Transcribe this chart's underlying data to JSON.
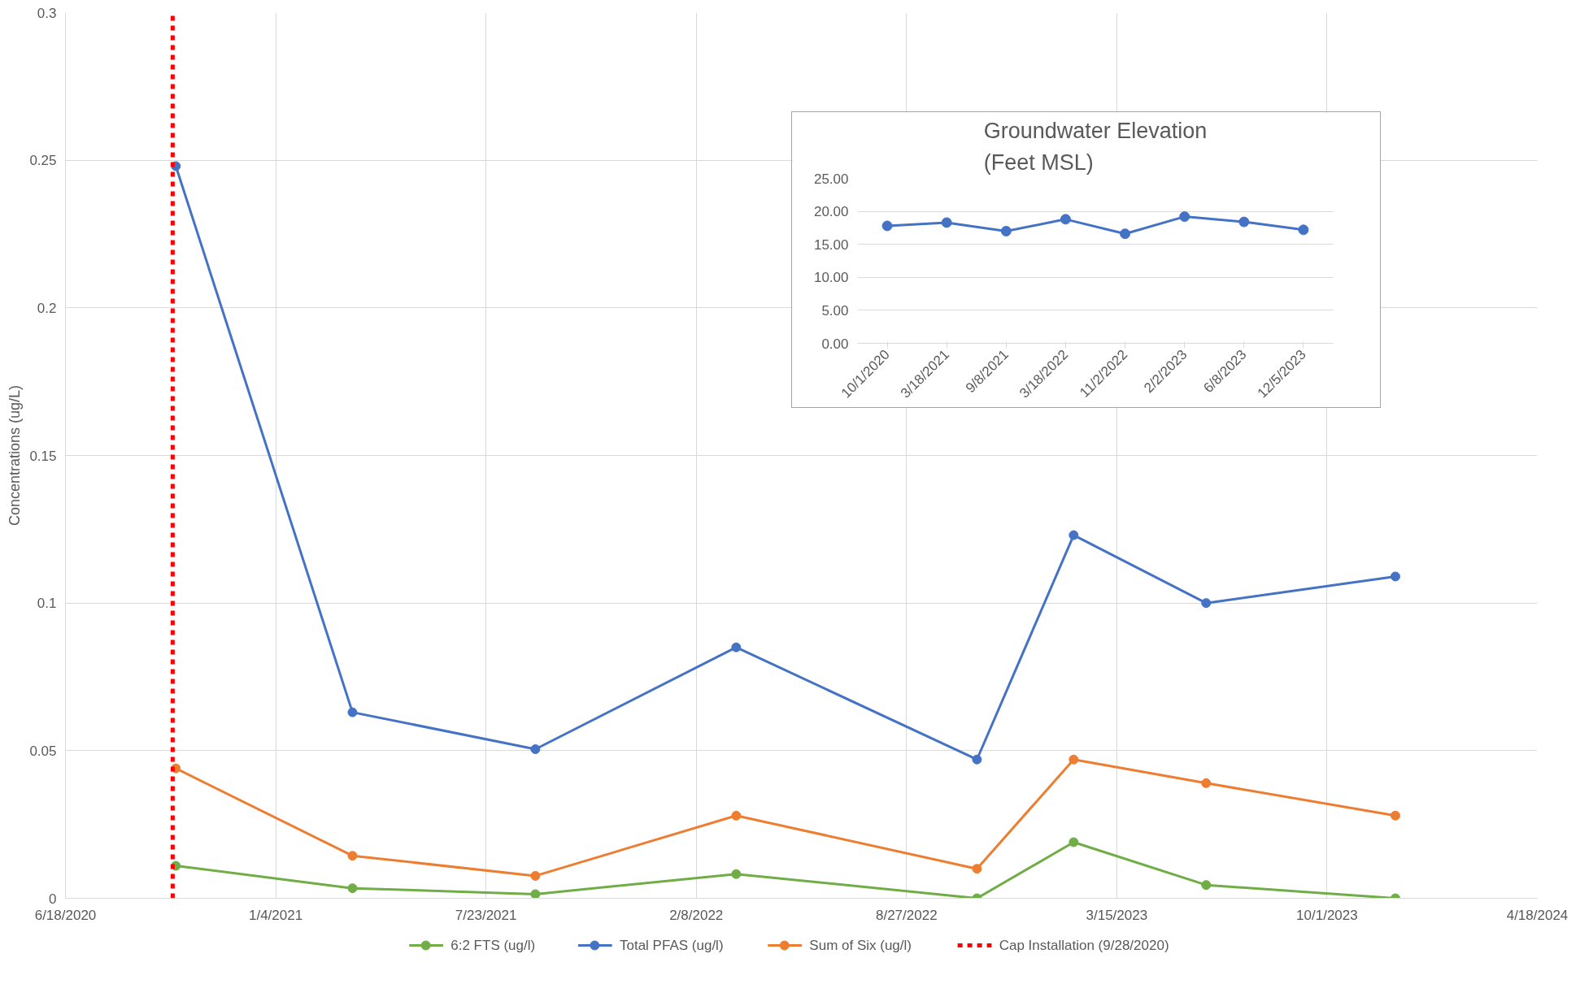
{
  "chart_data": [
    {
      "type": "line",
      "ylabel": "Concentrations (ug/L)",
      "x": [
        "2020-10-01",
        "2021-03-18",
        "2021-09-08",
        "2022-03-18",
        "2022-11-02",
        "2023-02-02",
        "2023-06-08",
        "2023-12-05"
      ],
      "series": [
        {
          "name": "6:2 FTS (ug/l)",
          "color": "#70ad47",
          "values": [
            0.011,
            0.0034,
            0.0014,
            0.0082,
            0.0,
            0.019,
            0.0045,
            0.0
          ]
        },
        {
          "name": "Total PFAS (ug/l)",
          "color": "#4472c4",
          "values": [
            0.248,
            0.063,
            0.0505,
            0.085,
            0.047,
            0.123,
            0.1,
            0.109
          ]
        },
        {
          "name": "Sum of Six (ug/l)",
          "color": "#ed7d31",
          "values": [
            0.044,
            0.0144,
            0.0076,
            0.028,
            0.01,
            0.047,
            0.039,
            0.028
          ]
        }
      ],
      "ref_lines": [
        {
          "axis": "x",
          "value": "2020-09-28",
          "label": "Cap Installation (9/28/2020)",
          "color": "#ff0000",
          "line_style": "dashed"
        }
      ],
      "xlim": [
        "2020-06-18",
        "2024-04-18"
      ],
      "xticks": [
        {
          "value": "2020-06-18",
          "label": "6/18/2020"
        },
        {
          "value": "2021-01-04",
          "label": "1/4/2021"
        },
        {
          "value": "2021-07-23",
          "label": "7/23/2021"
        },
        {
          "value": "2022-02-08",
          "label": "2/8/2022"
        },
        {
          "value": "2022-08-27",
          "label": "8/27/2022"
        },
        {
          "value": "2023-03-15",
          "label": "3/15/2023"
        },
        {
          "value": "2023-10-01",
          "label": "10/1/2023"
        },
        {
          "value": "2024-04-18",
          "label": "4/18/2024"
        }
      ],
      "ylim": [
        0,
        0.3
      ],
      "yticks": [
        0,
        0.05,
        0.1,
        0.15,
        0.2,
        0.25,
        0.3
      ],
      "grid": true,
      "legend": "bottom",
      "marker": "circle",
      "line_style": "solid"
    },
    {
      "type": "line",
      "title": "Groundwater Elevation\n(Feet MSL)",
      "categories": [
        "10/1/2020",
        "3/18/2021",
        "9/8/2021",
        "3/18/2022",
        "11/2/2022",
        "2/2/2023",
        "6/8/2023",
        "12/5/2023"
      ],
      "series": [
        {
          "color": "#4472c4",
          "values": [
            17.8,
            18.3,
            17.0,
            18.8,
            16.6,
            19.2,
            18.4,
            17.2
          ]
        }
      ],
      "ylim": [
        0,
        25
      ],
      "yticks": [
        {
          "value": 0,
          "label": "0.00"
        },
        {
          "value": 5,
          "label": "5.00"
        },
        {
          "value": 10,
          "label": "10.00"
        },
        {
          "value": 15,
          "label": "15.00"
        },
        {
          "value": 20,
          "label": "20.00"
        },
        {
          "value": 25,
          "label": "25.00"
        }
      ],
      "grid": "y",
      "marker": "circle",
      "line_style": "solid"
    }
  ]
}
